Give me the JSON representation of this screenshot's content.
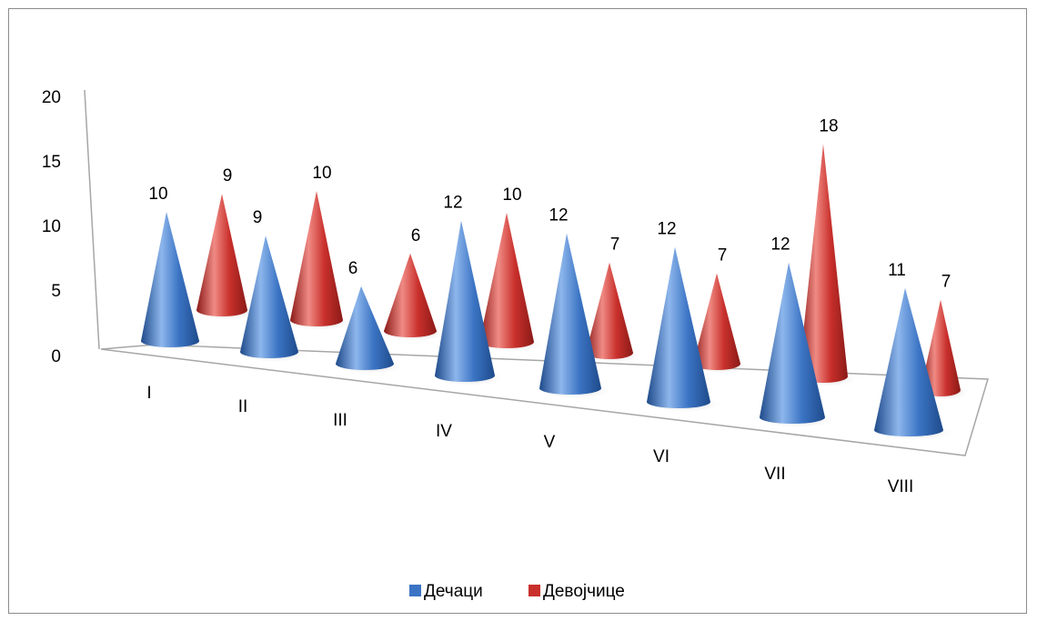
{
  "chart_data": {
    "type": "bar",
    "style": "3d-cone",
    "categories": [
      "I",
      "II",
      "III",
      "IV",
      "V",
      "VI",
      "VII",
      "VIII"
    ],
    "series": [
      {
        "name": "Дечаци",
        "values": [
          10,
          9,
          6,
          12,
          12,
          12,
          12,
          11
        ],
        "color": "#3b74c4"
      },
      {
        "name": "Девојчице",
        "values": [
          9,
          10,
          6,
          10,
          7,
          7,
          18,
          7
        ],
        "color": "#c9302c"
      }
    ],
    "y_ticks": [
      "0",
      "5",
      "10",
      "15",
      "20"
    ],
    "ylim": [
      0,
      20
    ],
    "title": "",
    "xlabel": "",
    "ylabel": "",
    "legend_position": "bottom",
    "data_labels": true
  }
}
